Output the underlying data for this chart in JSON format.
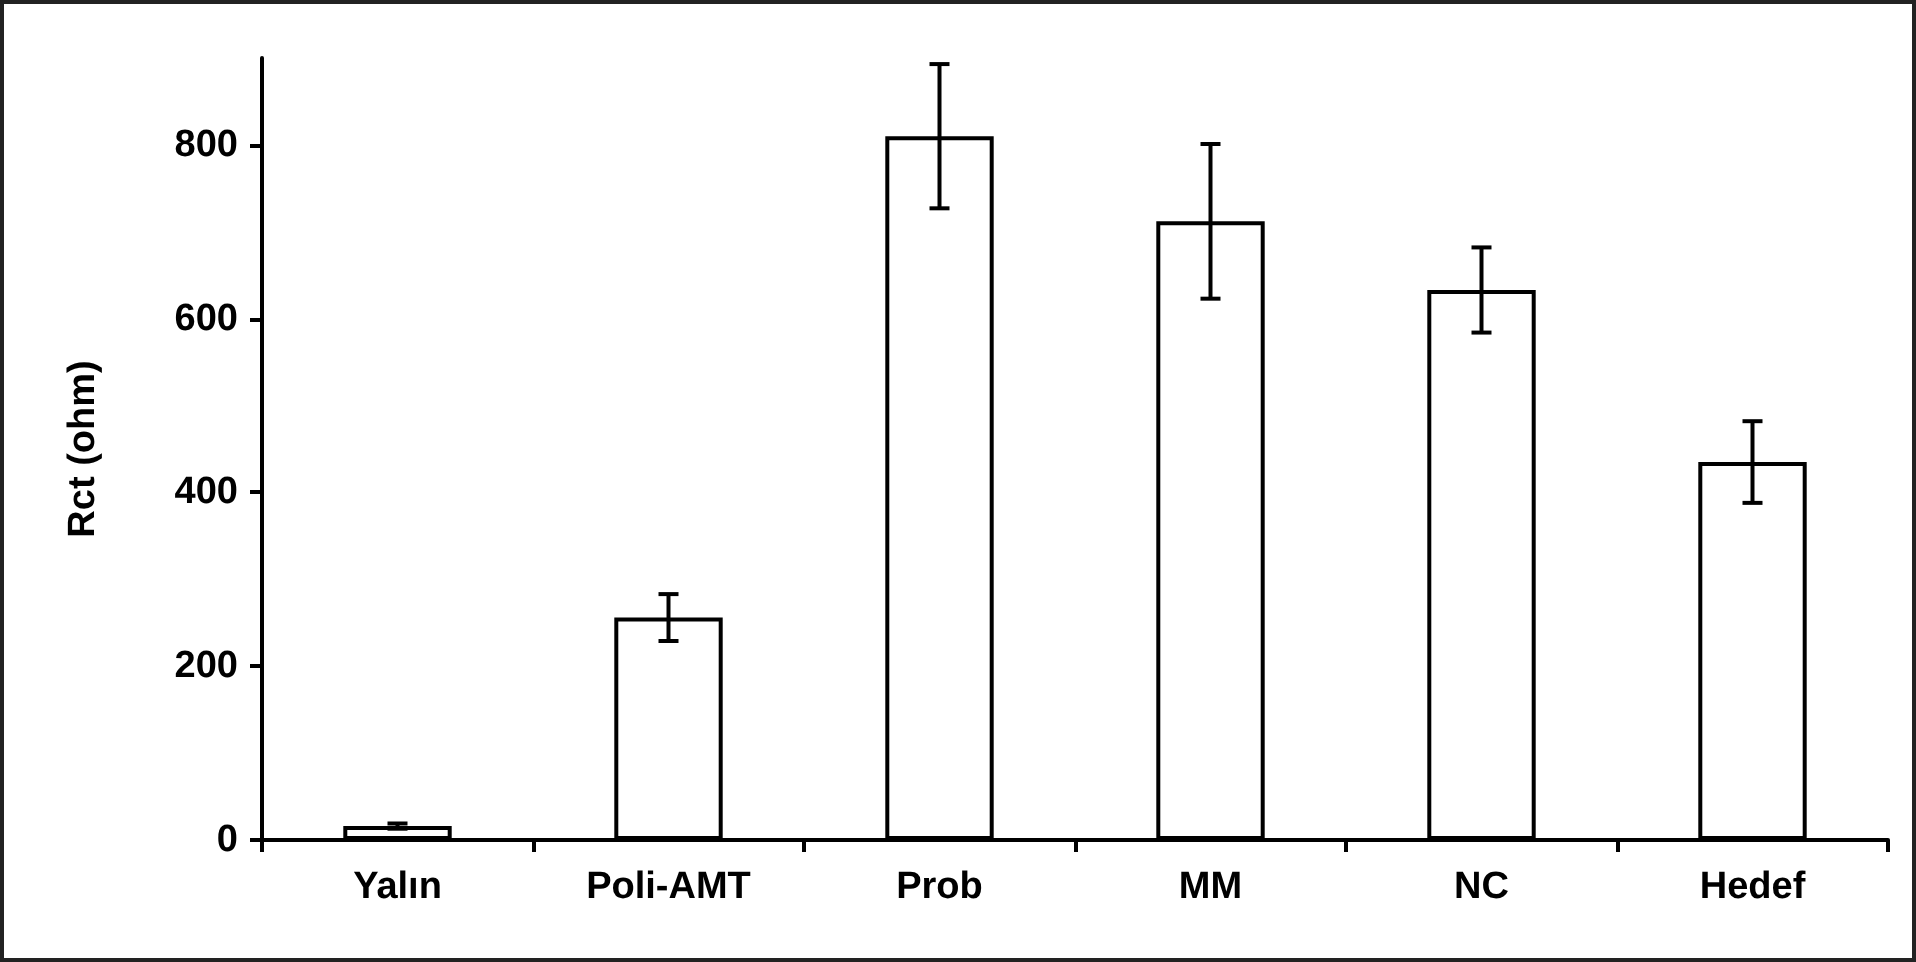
{
  "chart_data": {
    "type": "bar",
    "ylabel": "Rct (ohm)",
    "categories": [
      "Yalın",
      "Poli-AMT",
      "Prob",
      "MM",
      "NC",
      "Hedef"
    ],
    "values": [
      16,
      256,
      810,
      712,
      633,
      435
    ],
    "errors": [
      3,
      27,
      83,
      89,
      49,
      47
    ],
    "color": "#ffffff",
    "ylim": [
      0,
      900
    ],
    "yticks": [
      0,
      200,
      400,
      600,
      800
    ],
    "grid": false
  }
}
